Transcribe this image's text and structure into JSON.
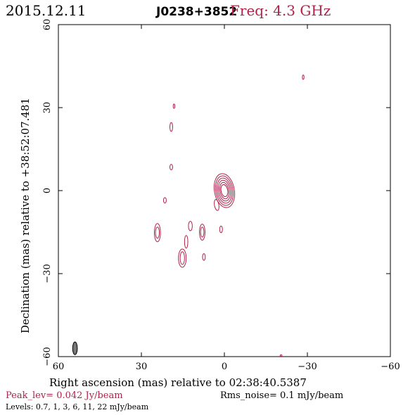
{
  "header": {
    "date": "2015.12.11",
    "source": "J0238+3852",
    "frequency": "Freq: 4.3 GHz"
  },
  "footer": {
    "peak": "Peak_lev=  0.042 Jy/beam",
    "rms": "Rms_noise=   0.1 mJy/beam",
    "levels": "Levels: 0.7,    1,    3,    6,   11,   22 mJy/beam"
  },
  "colors": {
    "contour": "#b0224a",
    "beam": "#777777",
    "axis": "#000000"
  },
  "chart_data": {
    "type": "contour",
    "xlabel": "Right ascension (mas) relative to 02:38:40.5387",
    "ylabel": "Declination (mas) relative to +38:52:07.481",
    "xlim": [
      60,
      -60
    ],
    "ylim": [
      -60,
      60
    ],
    "xticks": [
      60,
      30,
      0,
      -30,
      -60
    ],
    "yticks": [
      -60,
      -30,
      0,
      30,
      60
    ],
    "levels_mJy": [
      0.7,
      1,
      3,
      6,
      11,
      22
    ],
    "peak_Jy_per_beam": 0.042,
    "rms_mJy_per_beam": 0.1,
    "beam": {
      "x": 54,
      "y": -57,
      "major": 4.6,
      "minor": 1.7,
      "pa_deg": 0
    },
    "components": [
      {
        "name": "core",
        "x": 0,
        "y": 0,
        "rx": [
          1.2,
          1.6,
          2.1,
          2.6,
          3.1,
          3.6
        ],
        "ry": [
          2.2,
          3.0,
          3.8,
          4.6,
          5.4,
          6.2
        ],
        "angle": -10
      },
      {
        "name": "c1",
        "x": 2.8,
        "y": -5.2,
        "rx": [
          0.8
        ],
        "ry": [
          2.0
        ],
        "angle": -10
      },
      {
        "name": "c2",
        "x": 24.2,
        "y": -15.2,
        "rx": [
          0.7,
          1.1
        ],
        "ry": [
          2.0,
          3.3
        ],
        "angle": 0
      },
      {
        "name": "c3",
        "x": 15.2,
        "y": -24.4,
        "rx": [
          0.8,
          1.4
        ],
        "ry": [
          2.3,
          3.3
        ],
        "angle": 0
      },
      {
        "name": "c4",
        "x": 13.8,
        "y": -18.5,
        "rx": [
          0.6
        ],
        "ry": [
          2.3
        ],
        "angle": 0
      },
      {
        "name": "c5",
        "x": 12.3,
        "y": -12.8,
        "rx": [
          0.7
        ],
        "ry": [
          1.7
        ],
        "angle": 0
      },
      {
        "name": "c6",
        "x": 8.0,
        "y": -15.0,
        "rx": [
          0.6,
          1.0
        ],
        "ry": [
          1.8,
          2.9
        ],
        "angle": 0
      },
      {
        "name": "c7",
        "x": 1.2,
        "y": -14.0,
        "rx": [
          0.5
        ],
        "ry": [
          1.2
        ],
        "angle": 0
      },
      {
        "name": "c8",
        "x": 7.4,
        "y": -24.0,
        "rx": [
          0.5
        ],
        "ry": [
          1.2
        ],
        "angle": 0
      },
      {
        "name": "c9",
        "x": 21.5,
        "y": -3.5,
        "rx": [
          0.5
        ],
        "ry": [
          1.0
        ],
        "angle": 0
      },
      {
        "name": "c10",
        "x": 19.2,
        "y": 8.5,
        "rx": [
          0.5
        ],
        "ry": [
          1.0
        ],
        "angle": 0
      },
      {
        "name": "c11",
        "x": 19.2,
        "y": 23.0,
        "rx": [
          0.5
        ],
        "ry": [
          1.6
        ],
        "angle": 0
      },
      {
        "name": "c12",
        "x": 18.2,
        "y": 30.5,
        "rx": [
          0.3
        ],
        "ry": [
          0.8
        ],
        "angle": 0
      },
      {
        "name": "c13",
        "x": -28.5,
        "y": 41.0,
        "rx": [
          0.3
        ],
        "ry": [
          0.8
        ],
        "angle": 0
      },
      {
        "name": "c14",
        "x": -20.5,
        "y": -59.6,
        "rx": [
          0.3
        ],
        "ry": [
          0.3
        ],
        "angle": 0
      }
    ]
  }
}
